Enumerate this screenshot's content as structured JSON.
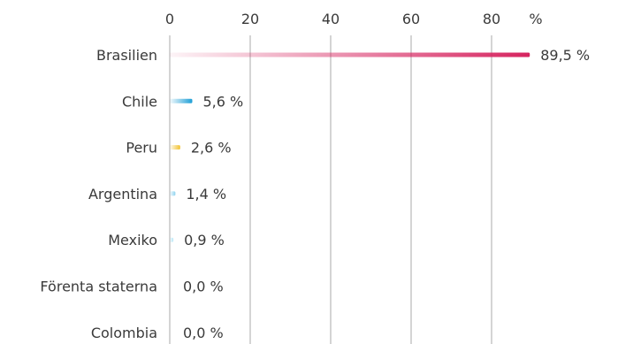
{
  "chart_data": {
    "type": "bar",
    "orientation": "horizontal",
    "categories": [
      "Brasilien",
      "Chile",
      "Peru",
      "Argentina",
      "Mexiko",
      "Förenta staterna",
      "Colombia"
    ],
    "values": [
      89.5,
      5.6,
      2.6,
      1.4,
      0.9,
      0.0,
      0.0
    ],
    "value_labels": [
      "89,5 %",
      "5,6 %",
      "2,6 %",
      "1,4 %",
      "0,9 %",
      "0,0 %",
      "0,0 %"
    ],
    "x_ticks": [
      0,
      20,
      40,
      60,
      80
    ],
    "x_tick_labels": [
      "0",
      "20",
      "40",
      "60",
      "80"
    ],
    "x_unit": "%",
    "xlim": [
      0,
      90
    ],
    "grid": true,
    "bar_colors": [
      "#d6245f",
      "#1e9fd6",
      "#f2c230",
      "#8fd3ef",
      "#b7e6f6",
      "#cccccc",
      "#cccccc"
    ]
  }
}
